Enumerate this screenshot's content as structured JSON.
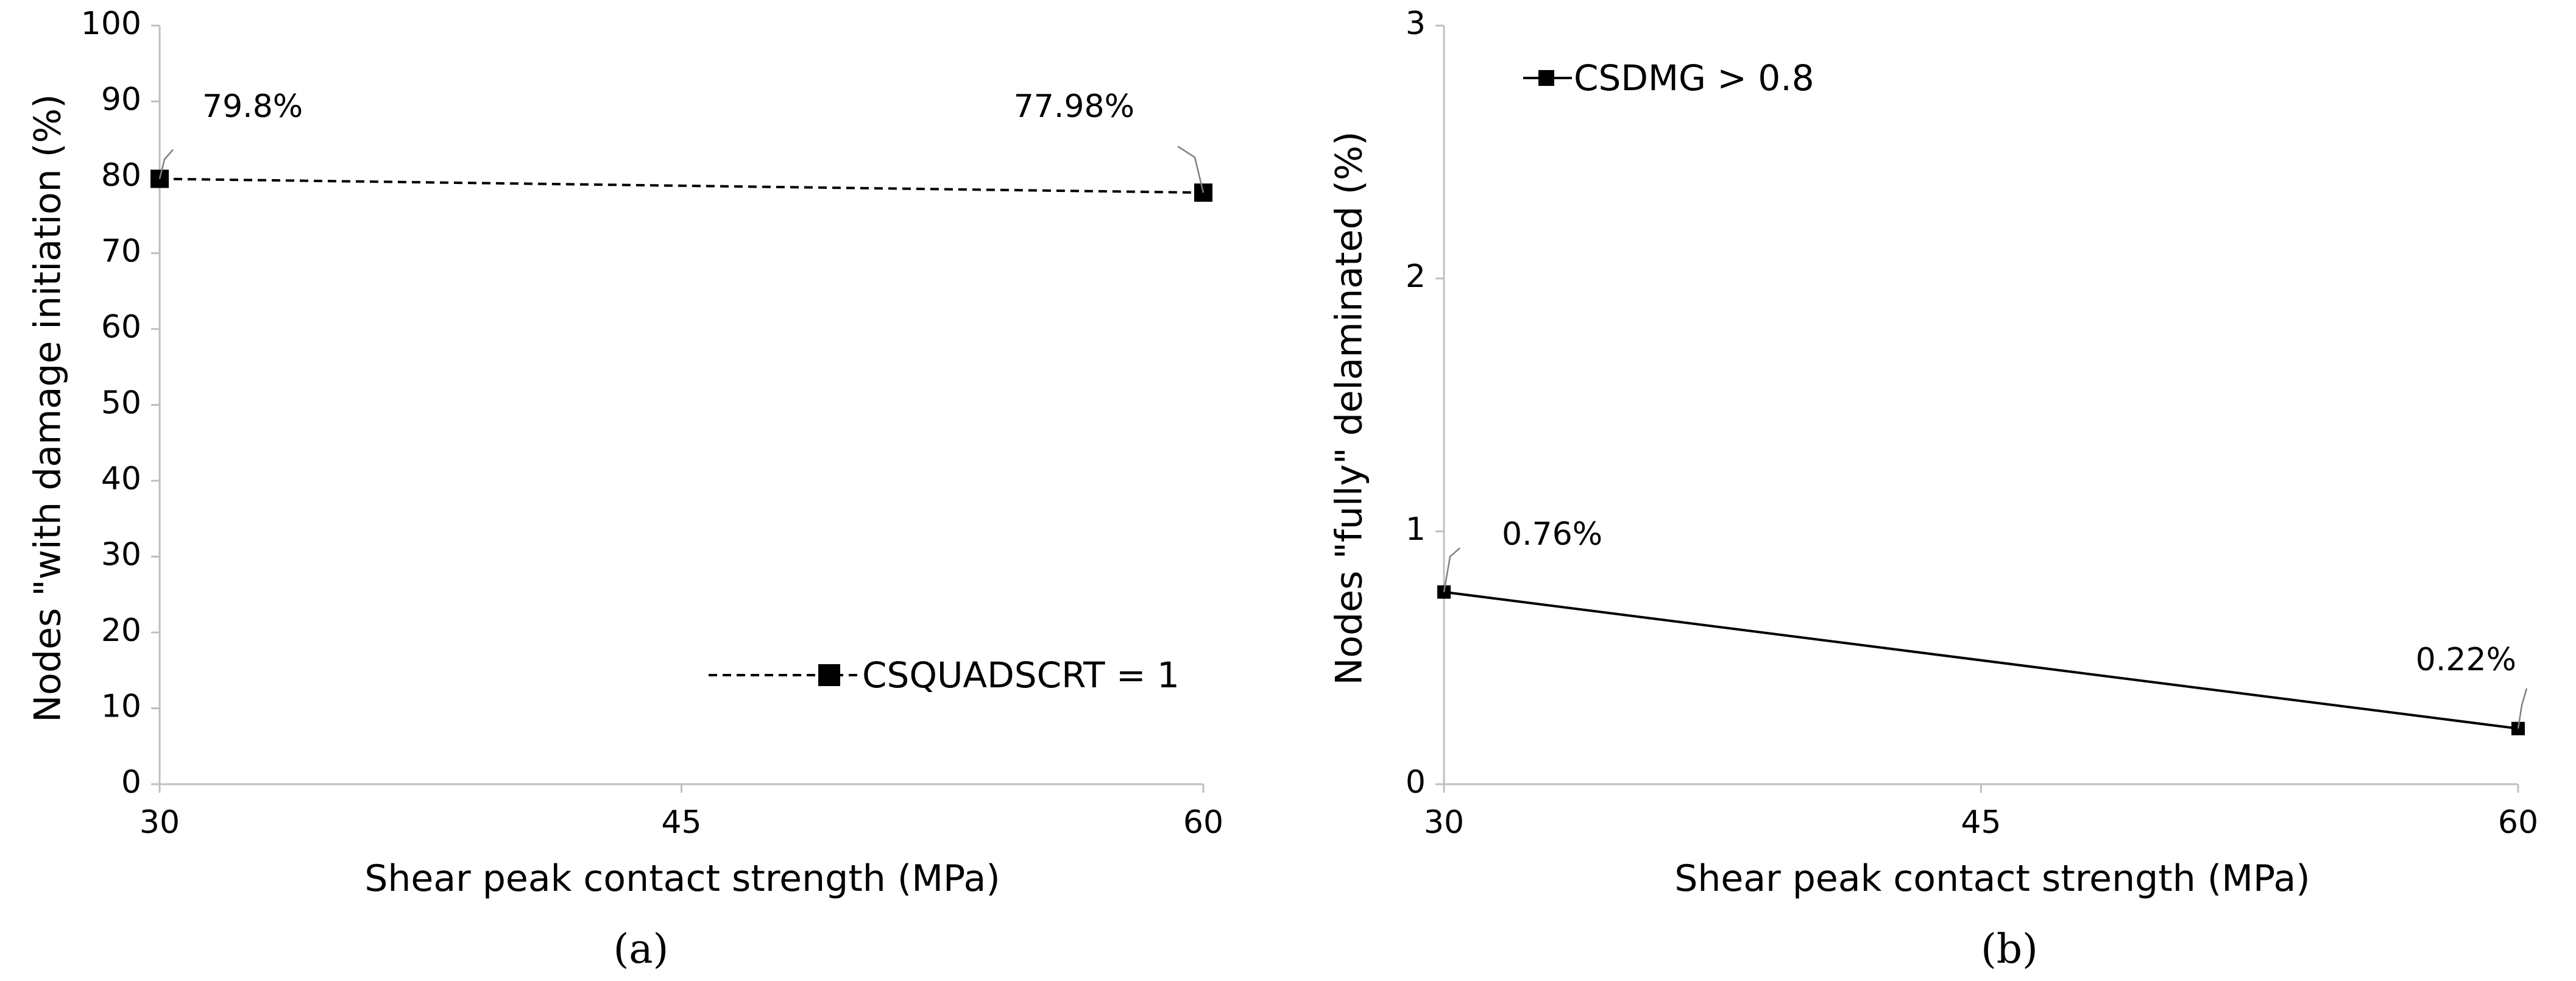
{
  "colors": {
    "line": "#000000",
    "axis": "#bfbfbf",
    "marker": "#000000",
    "background": "#ffffff"
  },
  "chart_data": [
    {
      "id": "a",
      "type": "line",
      "caption": "(a)",
      "xlabel": "Shear peak contact strength (MPa)",
      "ylabel": "Nodes \"with damage initiation (%)",
      "xlim": [
        30,
        60
      ],
      "ylim": [
        0,
        100
      ],
      "xticks": [
        "30",
        "45",
        "60"
      ],
      "yticks": [
        "0",
        "10",
        "20",
        "30",
        "40",
        "50",
        "60",
        "70",
        "80",
        "90",
        "100"
      ],
      "series": [
        {
          "name": "CSQUADSCRT = 1",
          "style": "dashed",
          "x": [
            30,
            60
          ],
          "y": [
            79.8,
            77.98
          ],
          "labels": [
            "79.8%",
            "77.98%"
          ]
        }
      ],
      "legend": {
        "position": "bottom-right"
      }
    },
    {
      "id": "b",
      "type": "line",
      "caption": "(b)",
      "xlabel": "Shear peak contact strength (MPa)",
      "ylabel": "Nodes \"fully\" delaminated (%)",
      "xlim": [
        30,
        60
      ],
      "ylim": [
        0,
        3
      ],
      "xticks": [
        "30",
        "45",
        "60"
      ],
      "yticks": [
        "0",
        "1",
        "2",
        "3"
      ],
      "series": [
        {
          "name": "CSDMG > 0.8",
          "style": "solid",
          "x": [
            30,
            60
          ],
          "y": [
            0.76,
            0.22
          ],
          "labels": [
            "0.76%",
            "0.22%"
          ]
        }
      ],
      "legend": {
        "position": "top-left"
      }
    }
  ]
}
